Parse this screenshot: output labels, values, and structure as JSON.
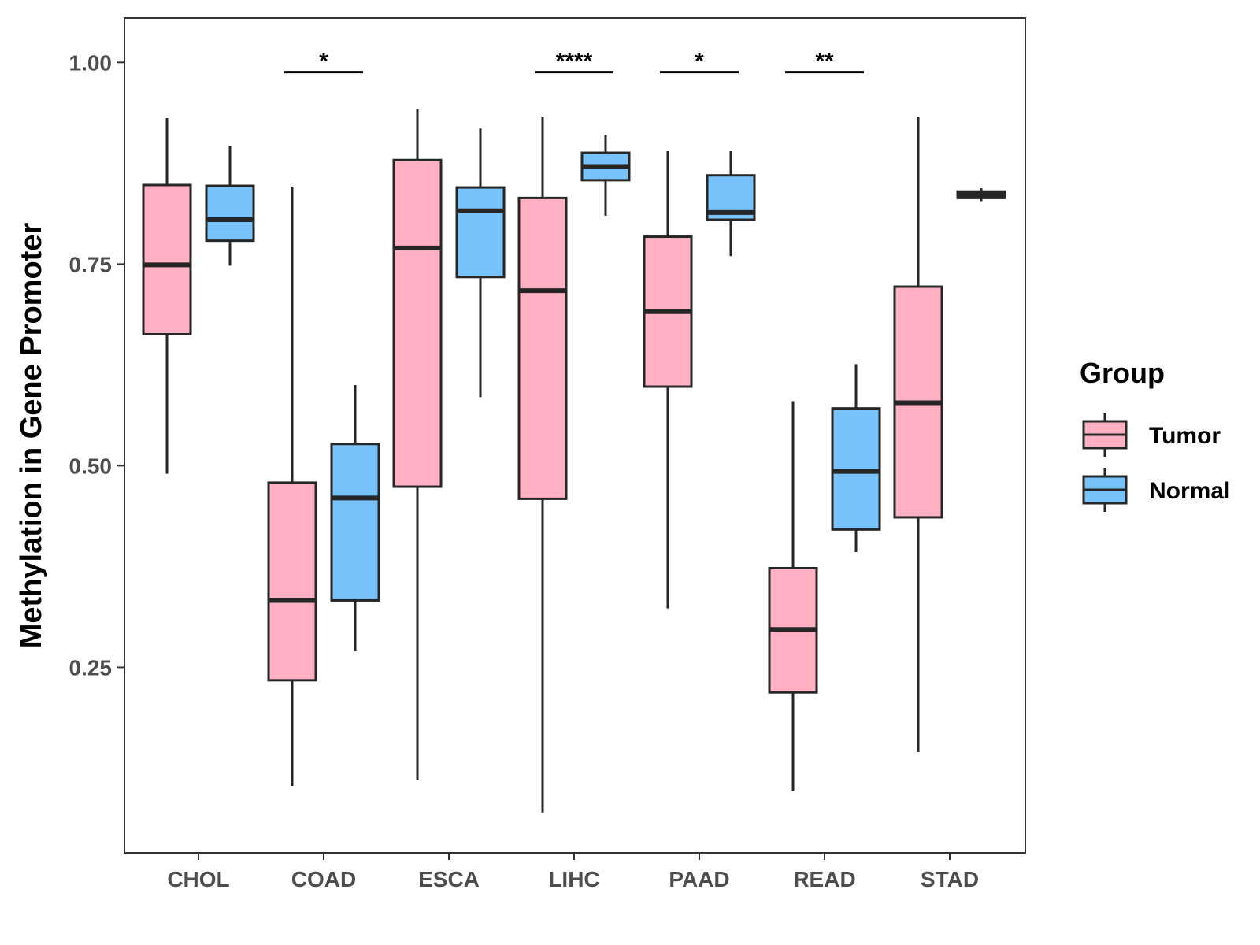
{
  "chart_data": {
    "type": "box",
    "title": "",
    "xlabel": "",
    "ylabel": "Methylation in Gene Promoter",
    "ylim": [
      0.02,
      1.055
    ],
    "yticks": [
      0.25,
      0.5,
      0.75,
      1.0
    ],
    "ytick_labels": [
      "0.25",
      "0.50",
      "0.75",
      "1.00"
    ],
    "categories": [
      "CHOL",
      "COAD",
      "ESCA",
      "LIHC",
      "PAAD",
      "READ",
      "STAD"
    ],
    "legend": {
      "title": "Group",
      "position": "right",
      "entries": [
        "Tumor",
        "Normal"
      ]
    },
    "colors": {
      "Tumor": "#ffb0c3",
      "Normal": "#77c2fa",
      "stroke": "#262626"
    },
    "series": [
      {
        "name": "Tumor",
        "boxes": [
          {
            "category": "CHOL",
            "whisker_low": 0.49,
            "q1": 0.663,
            "median": 0.749,
            "q3": 0.848,
            "whisker_high": 0.931
          },
          {
            "category": "COAD",
            "whisker_low": 0.103,
            "q1": 0.234,
            "median": 0.333,
            "q3": 0.479,
            "whisker_high": 0.846
          },
          {
            "category": "ESCA",
            "whisker_low": 0.11,
            "q1": 0.474,
            "median": 0.77,
            "q3": 0.879,
            "whisker_high": 0.942
          },
          {
            "category": "LIHC",
            "whisker_low": 0.07,
            "q1": 0.459,
            "median": 0.717,
            "q3": 0.832,
            "whisker_high": 0.933
          },
          {
            "category": "PAAD",
            "whisker_low": 0.323,
            "q1": 0.598,
            "median": 0.691,
            "q3": 0.784,
            "whisker_high": 0.89
          },
          {
            "category": "READ",
            "whisker_low": 0.097,
            "q1": 0.219,
            "median": 0.297,
            "q3": 0.373,
            "whisker_high": 0.58
          },
          {
            "category": "STAD",
            "whisker_low": 0.145,
            "q1": 0.436,
            "median": 0.578,
            "q3": 0.722,
            "whisker_high": 0.933
          }
        ]
      },
      {
        "name": "Normal",
        "boxes": [
          {
            "category": "CHOL",
            "whisker_low": 0.748,
            "q1": 0.779,
            "median": 0.805,
            "q3": 0.847,
            "whisker_high": 0.896
          },
          {
            "category": "COAD",
            "whisker_low": 0.27,
            "q1": 0.333,
            "median": 0.46,
            "q3": 0.527,
            "whisker_high": 0.6
          },
          {
            "category": "ESCA",
            "whisker_low": 0.585,
            "q1": 0.734,
            "median": 0.816,
            "q3": 0.845,
            "whisker_high": 0.918
          },
          {
            "category": "LIHC",
            "whisker_low": 0.81,
            "q1": 0.854,
            "median": 0.871,
            "q3": 0.888,
            "whisker_high": 0.91
          },
          {
            "category": "PAAD",
            "whisker_low": 0.76,
            "q1": 0.805,
            "median": 0.814,
            "q3": 0.86,
            "whisker_high": 0.89
          },
          {
            "category": "READ",
            "whisker_low": 0.393,
            "q1": 0.421,
            "median": 0.493,
            "q3": 0.571,
            "whisker_high": 0.626
          },
          {
            "category": "STAD",
            "whisker_low": 0.828,
            "q1": 0.832,
            "median": 0.836,
            "q3": 0.84,
            "whisker_high": 0.844
          }
        ]
      }
    ],
    "annotations": [
      {
        "category": "COAD",
        "text": "*"
      },
      {
        "category": "LIHC",
        "text": "****"
      },
      {
        "category": "PAAD",
        "text": "*"
      },
      {
        "category": "READ",
        "text": "**"
      }
    ]
  }
}
